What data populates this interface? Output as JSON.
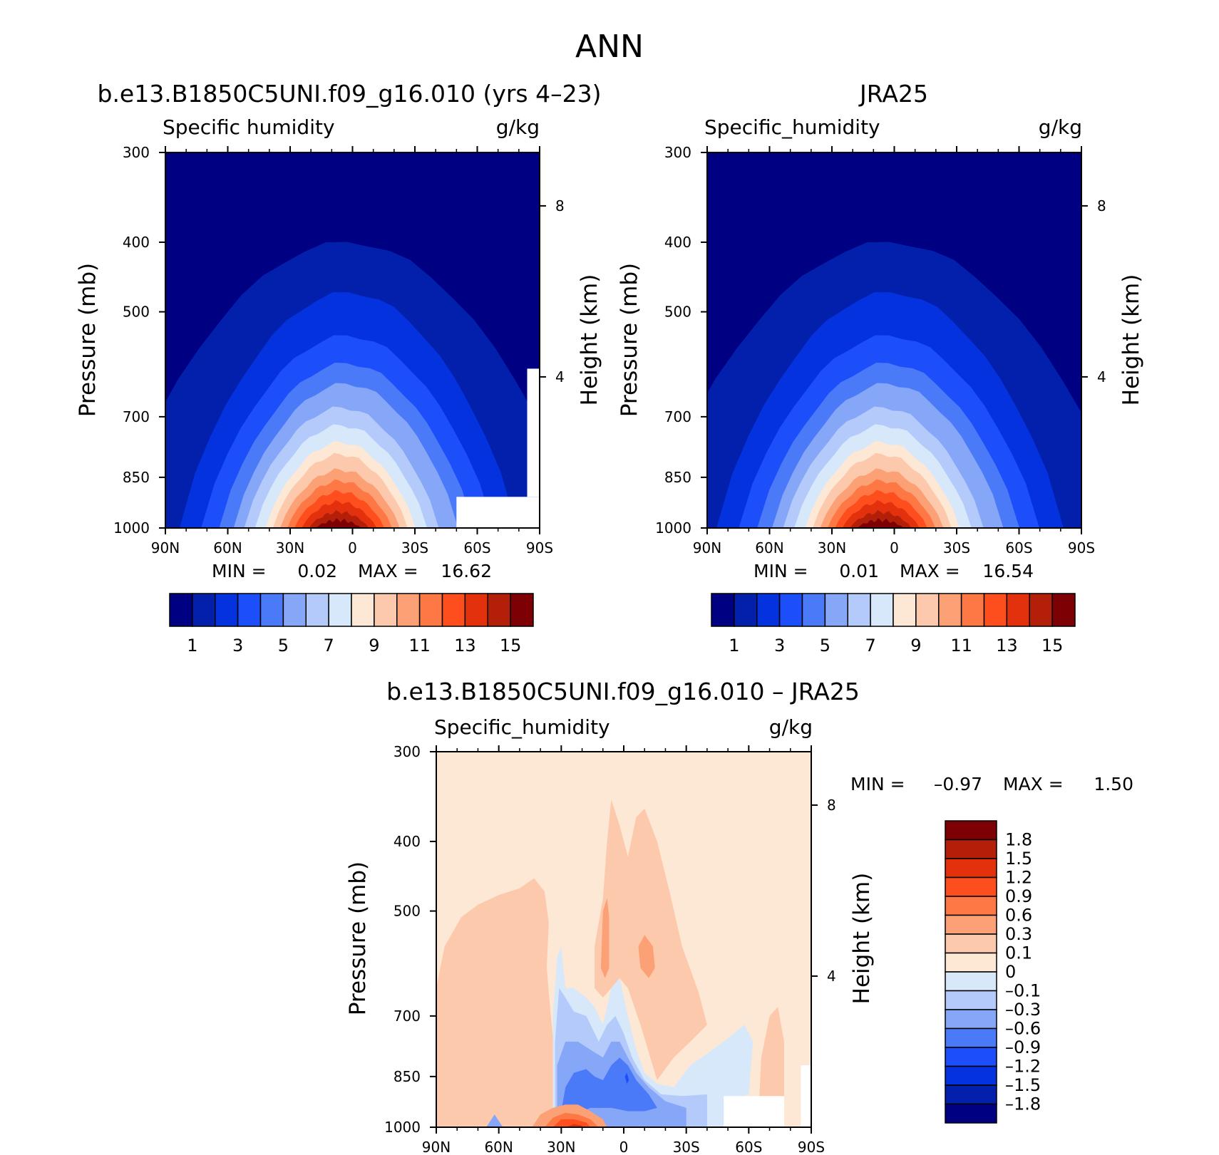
{
  "figure": {
    "title": "ANN"
  },
  "panels": [
    {
      "id": "model",
      "title": "b.e13.B1850C5UNI.f09_g16.010 (yrs 4–23)",
      "variable": "Specific humidity",
      "units": "g/kg",
      "min_label": "MIN  =",
      "min_value": "0.02",
      "max_label": "MAX  =",
      "max_value": "16.62"
    },
    {
      "id": "obs",
      "title": "JRA25",
      "variable": "Specific_humidity",
      "units": "g/kg",
      "min_label": "MIN  =",
      "min_value": "0.01",
      "max_label": "MAX  =",
      "max_value": "16.54"
    },
    {
      "id": "diff",
      "title": "b.e13.B1850C5UNI.f09_g16.010 – JRA25",
      "variable": "Specific_humidity",
      "units": "g/kg",
      "min_label": "MIN  =",
      "min_value": "–0.97",
      "max_label": "MAX  =",
      "max_value": "1.50"
    }
  ],
  "chart_data": [
    {
      "type": "heatmap",
      "subtype": "zonal-mean pressure-latitude filled contour",
      "title": "b.e13.B1850C5UNI.f09_g16.010 (yrs 4–23)",
      "ylabel": "Pressure (mb)",
      "y2label": "Height (km)",
      "x_ticks": [
        "90N",
        "60N",
        "30N",
        "0",
        "30S",
        "60S",
        "90S"
      ],
      "x_values": [
        90,
        60,
        30,
        0,
        -30,
        -60,
        -90
      ],
      "y_ticks": [
        300,
        400,
        500,
        700,
        850,
        1000
      ],
      "y2_ticks": [
        8,
        4
      ],
      "y_scale": "log",
      "ylim": [
        1000,
        300
      ],
      "xlim": [
        90,
        -90
      ],
      "colorbar_levels": [
        1,
        2,
        3,
        4,
        5,
        6,
        7,
        8,
        9,
        10,
        11,
        12,
        13,
        14,
        15
      ],
      "colorbar_tick_labels": [
        "1",
        "3",
        "5",
        "7",
        "9",
        "11",
        "13",
        "15"
      ],
      "min": 0.02,
      "max": 16.62,
      "peak_latitude": 5,
      "surface_values_by_latitude": {
        "90N": 1,
        "60N": 2,
        "30N": 8,
        "0": 16,
        "30S": 9,
        "60S": null,
        "90S": null
      },
      "values_300mb": "below 1",
      "masked_region": "60S–90S below about 900 mb (Antarctic topography)"
    },
    {
      "type": "heatmap",
      "subtype": "zonal-mean pressure-latitude filled contour",
      "title": "JRA25",
      "ylabel": "Pressure (mb)",
      "y2label": "Height (km)",
      "x_ticks": [
        "90N",
        "60N",
        "30N",
        "0",
        "30S",
        "60S",
        "90S"
      ],
      "x_values": [
        90,
        60,
        30,
        0,
        -30,
        -60,
        -90
      ],
      "y_ticks": [
        300,
        400,
        500,
        700,
        850,
        1000
      ],
      "y2_ticks": [
        8,
        4
      ],
      "y_scale": "log",
      "ylim": [
        1000,
        300
      ],
      "xlim": [
        90,
        -90
      ],
      "colorbar_levels": [
        1,
        2,
        3,
        4,
        5,
        6,
        7,
        8,
        9,
        10,
        11,
        12,
        13,
        14,
        15
      ],
      "colorbar_tick_labels": [
        "1",
        "3",
        "5",
        "7",
        "9",
        "11",
        "13",
        "15"
      ],
      "min": 0.01,
      "max": 16.54,
      "peak_latitude": 5,
      "surface_values_by_latitude": {
        "90N": 1,
        "60N": 2,
        "30N": 8,
        "0": 16,
        "30S": 9,
        "60S": 2,
        "90S": 1
      },
      "values_300mb": "below 1"
    },
    {
      "type": "heatmap",
      "subtype": "zonal-mean pressure-latitude filled contour (difference)",
      "title": "b.e13.B1850C5UNI.f09_g16.010 – JRA25",
      "ylabel": "Pressure (mb)",
      "y2label": "Height (km)",
      "x_ticks": [
        "90N",
        "60N",
        "30N",
        "0",
        "30S",
        "60S",
        "90S"
      ],
      "x_values": [
        90,
        60,
        30,
        0,
        -30,
        -60,
        -90
      ],
      "y_ticks": [
        300,
        400,
        500,
        700,
        850,
        1000
      ],
      "y2_ticks": [
        8,
        4
      ],
      "y_scale": "log",
      "ylim": [
        1000,
        300
      ],
      "xlim": [
        90,
        -90
      ],
      "colorbar_levels": [
        -1.8,
        -1.5,
        -1.2,
        -0.9,
        -0.6,
        -0.3,
        -0.1,
        0,
        0.1,
        0.3,
        0.6,
        0.9,
        1.2,
        1.5,
        1.8
      ],
      "colorbar_tick_labels": [
        "1.8",
        "1.5",
        "1.2",
        "0.9",
        "0.6",
        "0.3",
        "0.1",
        "0",
        "–0.1",
        "–0.3",
        "–0.6",
        "–0.9",
        "–1.2",
        "–1.5",
        "–1.8"
      ],
      "min": -0.97,
      "max": 1.5,
      "features": [
        "positive bias 0.1–0.3 g/kg over most of the domain (90N–35N and 20N–40S above 600 mb)",
        "negative bias down to about -0.9 g/kg between 35N and 25S, 600–1000 mb",
        "strongest positive bias about +1.5 g/kg near the surface at 20N–30N",
        "masked region 50S–75S below about 900 mb"
      ]
    }
  ],
  "colors": {
    "humidity": [
      "#000082",
      "#0320ac",
      "#0432df",
      "#1c4ef9",
      "#4b7af9",
      "#86a6f8",
      "#b3cafb",
      "#d7e8fb",
      "#fce8d4",
      "#fcc9ac",
      "#fca176",
      "#fe7846",
      "#fe4e1e",
      "#e2310c",
      "#b41f0a",
      "#7d0005"
    ],
    "difference": [
      "#000082",
      "#0320ac",
      "#0432df",
      "#1c4ef9",
      "#4b7af9",
      "#86a6f8",
      "#b3cafb",
      "#d7e8fb",
      "#fce8d4",
      "#fcc9ac",
      "#fca176",
      "#fe7846",
      "#fe4e1e",
      "#e2310c",
      "#b41f0a",
      "#7d0005"
    ]
  }
}
